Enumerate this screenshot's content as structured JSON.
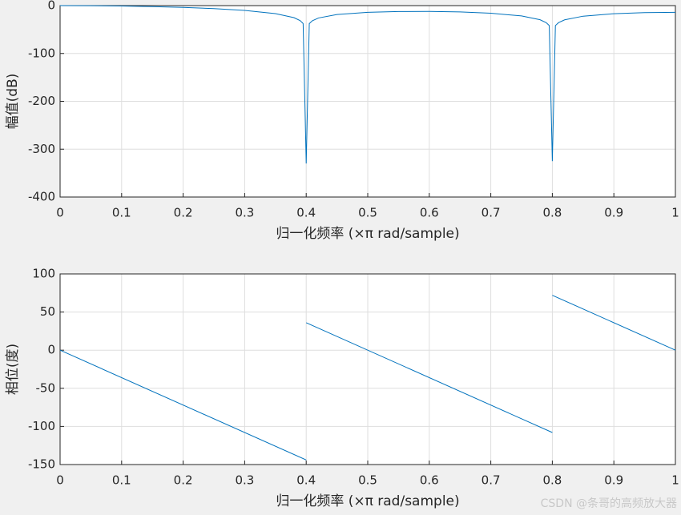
{
  "chart_data": [
    {
      "type": "line",
      "ylabel": "幅值(dB)",
      "xlabel": "归一化频率  (×π rad/sample)",
      "x": [
        0,
        0.05,
        0.1,
        0.15,
        0.2,
        0.25,
        0.3,
        0.35,
        0.38,
        0.39,
        0.395,
        0.4,
        0.405,
        0.41,
        0.42,
        0.45,
        0.5,
        0.55,
        0.6,
        0.65,
        0.7,
        0.75,
        0.78,
        0.79,
        0.795,
        0.8,
        0.805,
        0.81,
        0.82,
        0.85,
        0.9,
        0.95,
        1
      ],
      "series": [
        {
          "color": "#0072bd",
          "values": [
            0,
            -0.22,
            -0.88,
            -2.03,
            -3.78,
            -6.32,
            -10.13,
            -16.68,
            -25.09,
            -31.27,
            -37.4,
            -330,
            -37.6,
            -31.65,
            -25.84,
            -18.57,
            -13.98,
            -12.29,
            -12.14,
            -13.28,
            -15.99,
            -21.63,
            -29.56,
            -35.6,
            -41.6,
            -325,
            -41.7,
            -35.7,
            -29.74,
            -22.08,
            -16.88,
            -14.64,
            -13.98
          ]
        }
      ],
      "xlim": [
        0,
        1
      ],
      "xticks": [
        0,
        0.1,
        0.2,
        0.3,
        0.4,
        0.5,
        0.6,
        0.7,
        0.8,
        0.9,
        1
      ],
      "ylim": [
        -400,
        0
      ],
      "yticks": [
        -400,
        -300,
        -200,
        -100,
        0
      ],
      "grid": true
    },
    {
      "type": "line",
      "ylabel": "相位(度)",
      "xlabel": "归一化频率  (×π rad/sample)",
      "x": [
        0,
        0.4,
        0.4,
        0.4,
        0.8,
        0.8,
        0.8,
        1
      ],
      "series": [
        {
          "color": "#0072bd",
          "values": [
            0,
            -144,
            null,
            36,
            -108,
            null,
            72,
            0
          ]
        }
      ],
      "xlim": [
        0,
        1
      ],
      "xticks": [
        0,
        0.1,
        0.2,
        0.3,
        0.4,
        0.5,
        0.6,
        0.7,
        0.8,
        0.9,
        1
      ],
      "ylim": [
        -150,
        100
      ],
      "yticks": [
        -150,
        -100,
        -50,
        0,
        50,
        100
      ],
      "grid": true
    }
  ],
  "watermark": "CSDN @条哥的高频放大器"
}
